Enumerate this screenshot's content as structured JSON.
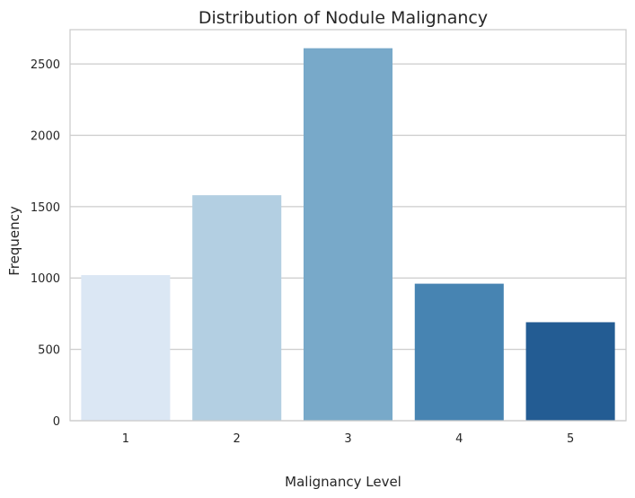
{
  "chart_data": {
    "type": "bar",
    "title": "Distribution of Nodule Malignancy",
    "xlabel": "Malignancy Level",
    "ylabel": "Frequency",
    "categories": [
      "1",
      "2",
      "3",
      "4",
      "5"
    ],
    "values": [
      1020,
      1580,
      2610,
      960,
      690
    ],
    "ylim": [
      0,
      2740
    ],
    "yticks": [
      0,
      500,
      1000,
      1500,
      2000,
      2500
    ],
    "grid": true,
    "legend": "none",
    "colors": [
      "#dbe7f4",
      "#b3cfe2",
      "#78a9c9",
      "#4784b2",
      "#235c93"
    ],
    "grid_color": "#cccccc",
    "frame_color": "#cccccc"
  }
}
